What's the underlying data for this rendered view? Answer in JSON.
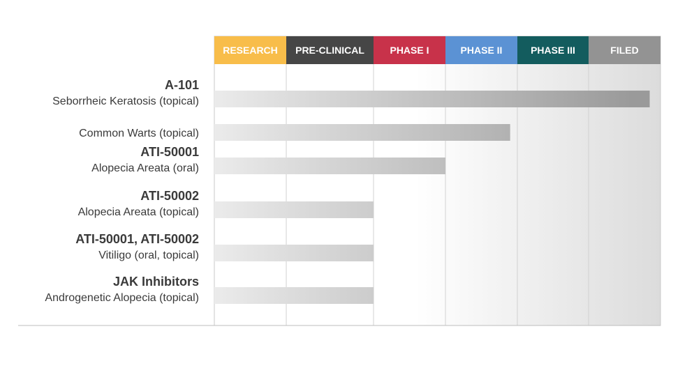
{
  "chart_data": {
    "type": "bar",
    "orientation": "horizontal",
    "stages": [
      {
        "label": "RESEARCH",
        "color": "#f8bd4a"
      },
      {
        "label": "PRE-CLINICAL",
        "color": "#464646"
      },
      {
        "label": "PHASE I",
        "color": "#c8324a"
      },
      {
        "label": "PHASE II",
        "color": "#5b92d4"
      },
      {
        "label": "PHASE III",
        "color": "#135c5e"
      },
      {
        "label": "FILED",
        "color": "#939393"
      }
    ],
    "programs": [
      {
        "drug": "A-101",
        "indication": "Seborrheic Keratosis (topical)",
        "progress_stages": 5.85
      },
      {
        "drug": "",
        "indication": "Common Warts (topical)",
        "progress_stages": 3.9
      },
      {
        "drug": "ATI-50001",
        "indication": "Alopecia Areata (oral)",
        "progress_stages": 3.0
      },
      {
        "drug": "ATI-50002",
        "indication": "Alopecia Areata (topical)",
        "progress_stages": 2.0
      },
      {
        "drug": "ATI-50001, ATI-50002",
        "indication": "Vitiligo (oral, topical)",
        "progress_stages": 2.0
      },
      {
        "drug": "JAK Inhibitors",
        "indication": "Androgenetic Alopecia (topical)",
        "progress_stages": 2.0
      }
    ],
    "xlim": [
      0,
      6
    ],
    "grid": true
  }
}
